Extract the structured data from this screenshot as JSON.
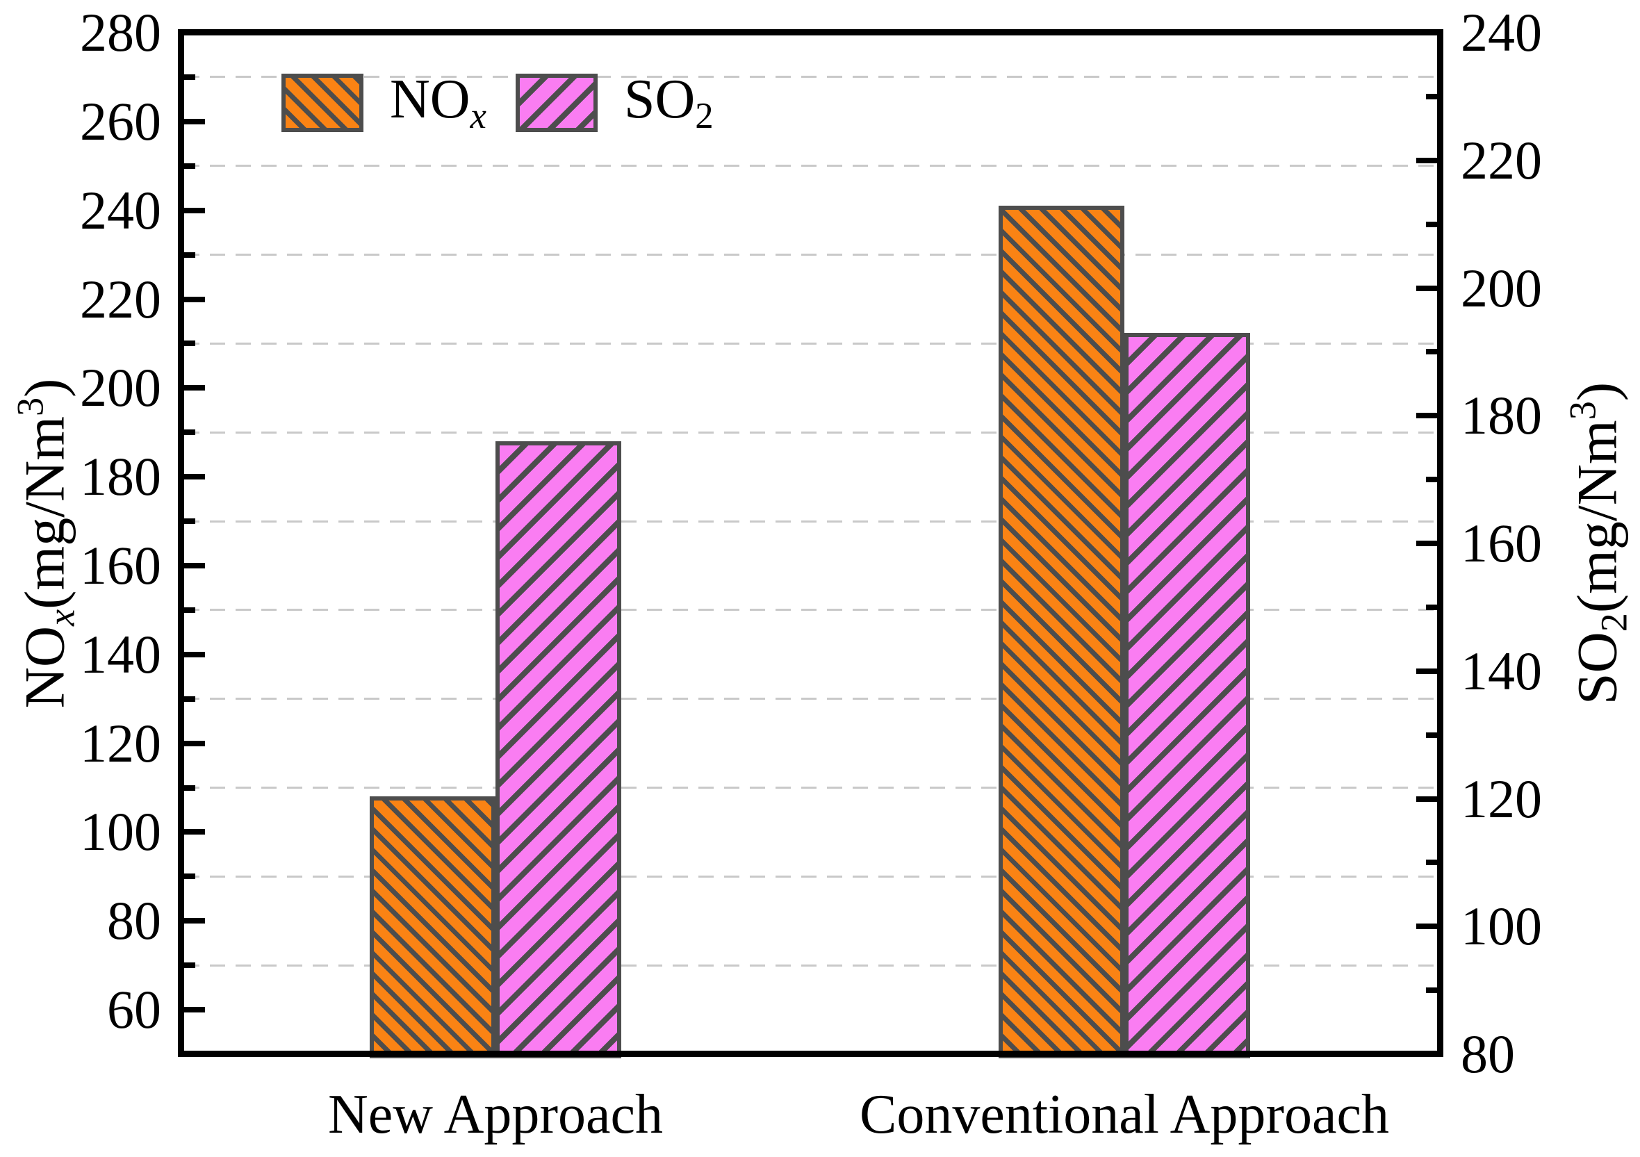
{
  "chart_data": {
    "type": "bar",
    "title": "",
    "categories": [
      "New Approach",
      "Conventional Approach"
    ],
    "series": [
      {
        "name": "NOx",
        "axis": "left",
        "values": [
          108,
          241
        ],
        "color": "#FA8314",
        "hatch": "\\"
      },
      {
        "name": "SO2",
        "axis": "right",
        "values": [
          176,
          193
        ],
        "color": "#FA7DF2",
        "hatch": "/"
      }
    ],
    "left_axis": {
      "label": "NOx(mg/Nm3)",
      "min": 50,
      "max": 280,
      "major_ticks": [
        60,
        80,
        100,
        120,
        140,
        160,
        180,
        200,
        220,
        240,
        260,
        280
      ],
      "minor_ticks": [
        70,
        90,
        110,
        130,
        150,
        170,
        190,
        210,
        230,
        250,
        270
      ],
      "title_parts": [
        {
          "t": "NO"
        },
        {
          "t": "x",
          "style": "sub-italic"
        },
        {
          "t": "(mg/Nm"
        },
        {
          "t": "3",
          "style": "sup"
        },
        {
          "t": ")"
        }
      ]
    },
    "right_axis": {
      "label": "SO2(mg/Nm3)",
      "min": 80,
      "max": 240,
      "major_ticks": [
        80,
        100,
        120,
        140,
        160,
        180,
        200,
        220,
        240
      ],
      "minor_ticks": [
        90,
        110,
        130,
        150,
        170,
        190,
        210,
        230
      ],
      "title_parts": [
        {
          "t": "SO"
        },
        {
          "t": "2",
          "style": "sub"
        },
        {
          "t": "(mg/Nm"
        },
        {
          "t": "3",
          "style": "sup"
        },
        {
          "t": ")"
        }
      ]
    },
    "gridlines": {
      "axis": "left",
      "style": "dashed",
      "values": [
        70,
        90,
        110,
        130,
        150,
        170,
        190,
        210,
        230,
        250,
        270
      ]
    },
    "legend": {
      "position": "top-left",
      "items": [
        {
          "series": "NOx",
          "parts": [
            {
              "t": "NO"
            },
            {
              "t": "x",
              "style": "sub-italic"
            }
          ]
        },
        {
          "series": "SO2",
          "parts": [
            {
              "t": "SO"
            },
            {
              "t": "2",
              "style": "sub"
            }
          ]
        }
      ]
    },
    "colors": {
      "hatch_and_border": "#4D4D4D",
      "grid": "#C9C9C9",
      "axis": "#000000",
      "background": "#FFFFFF"
    }
  }
}
